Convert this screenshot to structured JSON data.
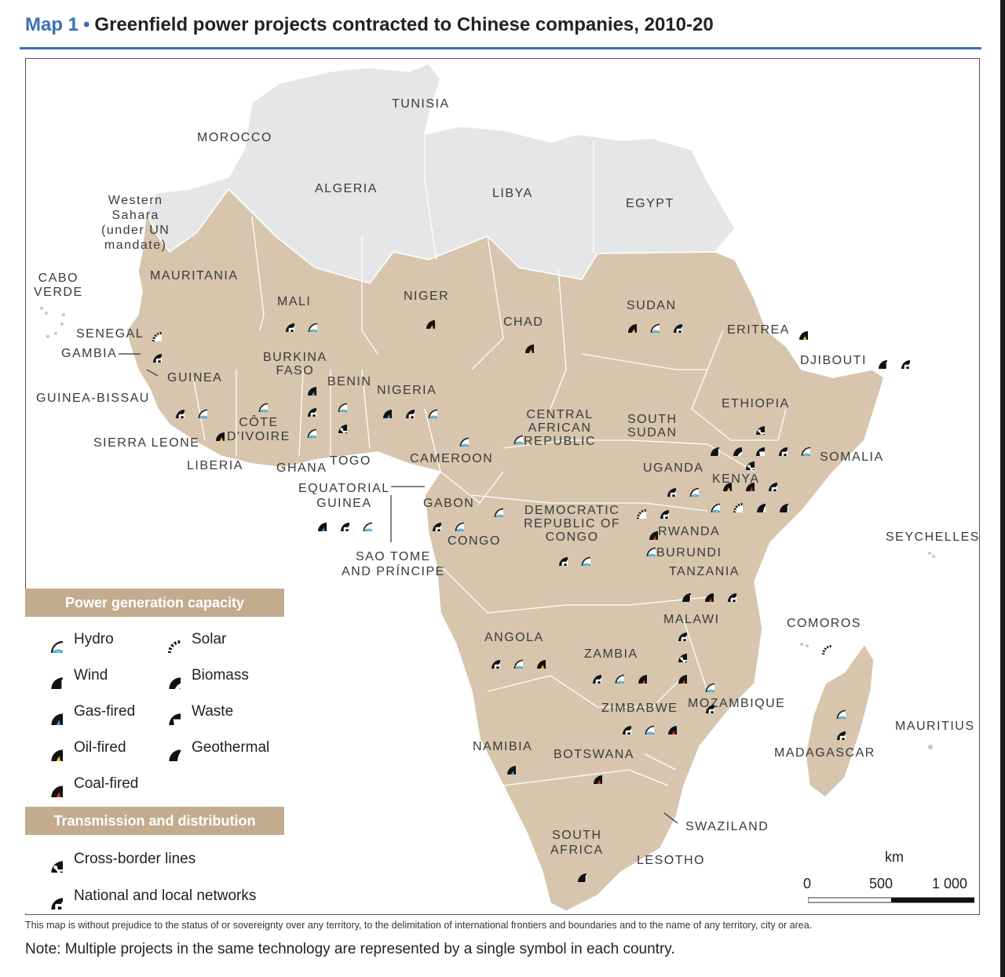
{
  "title": {
    "prefix": "Map 1",
    "separator": "•",
    "text": "Greenfield power projects contracted to Chinese companies, 2010-20"
  },
  "countries": {
    "tunisia": "TUNISIA",
    "morocco": "MOROCCO",
    "algeria": "ALGERIA",
    "libya": "LIBYA",
    "egypt": "EGYPT",
    "western_sahara": [
      "Western",
      "Sahara",
      "(under UN",
      "mandate)"
    ],
    "mauritania": "MAURITANIA",
    "cabo_verde": [
      "CABO",
      "VERDE"
    ],
    "mali": "MALI",
    "niger": "NIGER",
    "chad": "CHAD",
    "sudan": "SUDAN",
    "eritrea": "ERITREA",
    "djibouti": "DJIBOUTI",
    "senegal": "SENEGAL",
    "gambia": "GAMBIA",
    "guinea": "GUINEA",
    "guinea_bissau": "GUINEA-BISSAU",
    "burkina_faso": [
      "BURKINA",
      "FASO"
    ],
    "benin": "BENIN",
    "nigeria": "NIGERIA",
    "ethiopia": "ETHIOPIA",
    "cote_divoire": [
      "CÔTE",
      "D'IVOIRE"
    ],
    "central_african_republic": [
      "CENTRAL",
      "AFRICAN",
      "REPUBLIC"
    ],
    "south_sudan": [
      "SOUTH",
      "SUDAN"
    ],
    "sierra_leone": "SIERRA LEONE",
    "liberia": "LIBERIA",
    "ghana": "GHANA",
    "togo": "TOGO",
    "cameroon": "CAMEROON",
    "somalia": "SOMALIA",
    "uganda": "UGANDA",
    "kenya": "KENYA",
    "equatorial_guinea": [
      "EQUATORIAL",
      "GUINEA"
    ],
    "gabon": "GABON",
    "drc": [
      "DEMOCRATIC",
      "REPUBLIC OF",
      "CONGO"
    ],
    "rwanda": "RWANDA",
    "congo": "CONGO",
    "burundi": "BURUNDI",
    "seychelles": "SEYCHELLES",
    "sao_tome": [
      "SAO TOME",
      "AND PRÍNCIPE"
    ],
    "tanzania": "TANZANIA",
    "malawi": "MALAWI",
    "comoros": "COMOROS",
    "angola": "ANGOLA",
    "zambia": "ZAMBIA",
    "zimbabwe": "ZIMBABWE",
    "mozambique": "MOZAMBIQUE",
    "mauritius": "MAURITIUS",
    "namibia": "NAMIBIA",
    "botswana": "BOTSWANA",
    "madagascar": "MADAGASCAR",
    "swaziland": "SWAZILAND",
    "south_africa": [
      "SOUTH",
      "AFRICA"
    ],
    "lesotho": "LESOTHO"
  },
  "legend": {
    "generation_heading": "Power generation capacity",
    "generation_items": [
      {
        "key": "hydro",
        "label": "Hydro"
      },
      {
        "key": "solar",
        "label": "Solar"
      },
      {
        "key": "wind",
        "label": "Wind"
      },
      {
        "key": "biomass",
        "label": "Biomass"
      },
      {
        "key": "gas",
        "label": "Gas-fired"
      },
      {
        "key": "waste",
        "label": "Waste"
      },
      {
        "key": "oil",
        "label": "Oil-fired"
      },
      {
        "key": "geothermal",
        "label": "Geothermal"
      },
      {
        "key": "coal",
        "label": "Coal-fired"
      }
    ],
    "transmission_heading": "Transmission and distribution",
    "transmission_items": [
      {
        "key": "crossborder",
        "label": "Cross-border lines"
      },
      {
        "key": "network",
        "label": "National and local networks"
      }
    ]
  },
  "project_symbols": {
    "mali": [
      "network",
      "hydro"
    ],
    "niger": [
      "oil"
    ],
    "chad": [
      "oil"
    ],
    "sudan": [
      "oil",
      "hydro",
      "network"
    ],
    "eritrea": [
      "oil"
    ],
    "djibouti": [
      "wind",
      "network"
    ],
    "senegal": [
      "solar",
      "network"
    ],
    "guinea": [
      "network",
      "hydro"
    ],
    "burkina_faso": [
      "gas",
      "network",
      "hydro"
    ],
    "benin": [
      "hydro",
      "crossborder"
    ],
    "nigeria": [
      "gas",
      "network",
      "hydro"
    ],
    "cote_divoire": [
      "hydro"
    ],
    "liberia": [
      "oil"
    ],
    "cameroon": [
      "hydro"
    ],
    "central_african_republic": [
      "hydro"
    ],
    "ethiopia": [
      "crossborder",
      "wind",
      "biomass",
      "waste",
      "network",
      "hydro"
    ],
    "kenya": [
      "crossborder",
      "oil",
      "coal",
      "network",
      "hydro",
      "solar",
      "geothermal",
      "wind"
    ],
    "uganda": [
      "network",
      "hydro"
    ],
    "equatorial_guinea": [
      "gas",
      "network",
      "hydro"
    ],
    "gabon": [
      "network",
      "hydro"
    ],
    "congo": [
      "hydro"
    ],
    "drc": [
      "network",
      "hydro"
    ],
    "rwanda": [
      "solar",
      "network",
      "coal"
    ],
    "burundi": [
      "hydro"
    ],
    "tanzania": [
      "wind",
      "coal",
      "network"
    ],
    "malawi": [
      "network",
      "crossborder",
      "coal"
    ],
    "comoros": [
      "solar"
    ],
    "angola": [
      "network",
      "hydro",
      "oil"
    ],
    "zambia": [
      "network",
      "hydro",
      "coal"
    ],
    "mozambique": [
      "hydro",
      "network"
    ],
    "zimbabwe": [
      "network",
      "hydro",
      "coal"
    ],
    "madagascar": [
      "hydro",
      "network"
    ],
    "namibia": [
      "gas"
    ],
    "botswana": [
      "coal"
    ],
    "south_africa": [
      "wind"
    ]
  },
  "scale": {
    "unit": "km",
    "ticks": [
      "0",
      "500",
      "1 000"
    ]
  },
  "colors": {
    "subsaharan_fill": "#d7c5ae",
    "north_fill": "#e4e6e8",
    "border": "#ffffff",
    "title_accent": "#3b6fb6",
    "legend_header": "#c3ab8e"
  },
  "disclaimer": "This map is without prejudice to the status of or sovereignty over any territory, to the delimitation of international frontiers and boundaries and to the name of any territory, city or area.",
  "note": "Note: Multiple projects in the same technology are represented by a single symbol in each country."
}
